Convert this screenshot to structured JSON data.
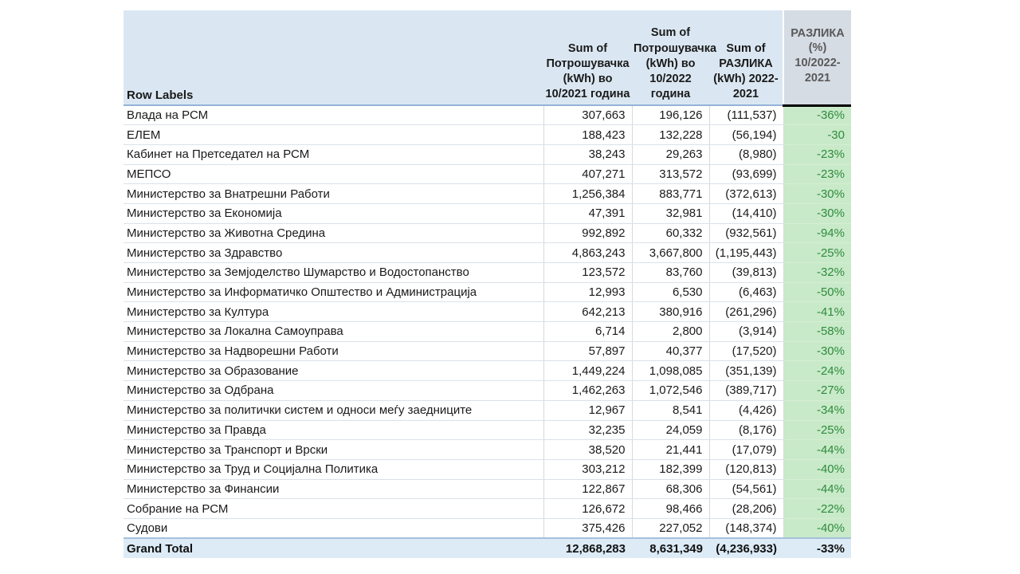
{
  "table": {
    "header": {
      "row_labels": "Row Labels",
      "col_2021": "Sum of Потрошувачка (kWh) во 10/2021 година",
      "col_2022": "Sum of Потрошувачка (kWh) во 10/2022 година",
      "col_diff": "Sum of РАЗЛИКА (kWh) 2022-2021",
      "col_pct": "РАЗЛИКА (%) 10/2022-2021"
    },
    "rows": [
      {
        "label": "Влада на РСМ",
        "y2021": "307,663",
        "y2022": "196,126",
        "diff": "(111,537)",
        "pct": "-36%"
      },
      {
        "label": "ЕЛЕМ",
        "y2021": "188,423",
        "y2022": "132,228",
        "diff": "(56,194)",
        "pct": "-30"
      },
      {
        "label": "Кабинет на Претседател на РСМ",
        "y2021": "38,243",
        "y2022": "29,263",
        "diff": "(8,980)",
        "pct": "-23%"
      },
      {
        "label": "МЕПСО",
        "y2021": "407,271",
        "y2022": "313,572",
        "diff": "(93,699)",
        "pct": "-23%"
      },
      {
        "label": "Министерство за Внатрешни Работи",
        "y2021": "1,256,384",
        "y2022": "883,771",
        "diff": "(372,613)",
        "pct": "-30%"
      },
      {
        "label": "Министерство за Економија",
        "y2021": "47,391",
        "y2022": "32,981",
        "diff": "(14,410)",
        "pct": "-30%"
      },
      {
        "label": "Министерство за Животна Средина",
        "y2021": "992,892",
        "y2022": "60,332",
        "diff": "(932,561)",
        "pct": "-94%"
      },
      {
        "label": "Министерство за Здравство",
        "y2021": "4,863,243",
        "y2022": "3,667,800",
        "diff": "(1,195,443)",
        "pct": "-25%"
      },
      {
        "label": "Министерство за Земјоделство Шумарство и Водостопанство",
        "y2021": "123,572",
        "y2022": "83,760",
        "diff": "(39,813)",
        "pct": "-32%"
      },
      {
        "label": "Министерство за Информатичко Општество и Администрација",
        "y2021": "12,993",
        "y2022": "6,530",
        "diff": "(6,463)",
        "pct": "-50%"
      },
      {
        "label": "Министерство за Култура",
        "y2021": "642,213",
        "y2022": "380,916",
        "diff": "(261,296)",
        "pct": "-41%"
      },
      {
        "label": "Министерство за Локална Самоуправа",
        "y2021": "6,714",
        "y2022": "2,800",
        "diff": "(3,914)",
        "pct": "-58%"
      },
      {
        "label": "Министерство за Надворешни Работи",
        "y2021": "57,897",
        "y2022": "40,377",
        "diff": "(17,520)",
        "pct": "-30%"
      },
      {
        "label": "Министерство за Образование",
        "y2021": "1,449,224",
        "y2022": "1,098,085",
        "diff": "(351,139)",
        "pct": "-24%"
      },
      {
        "label": "Министерство за Одбрана",
        "y2021": "1,462,263",
        "y2022": "1,072,546",
        "diff": "(389,717)",
        "pct": "-27%"
      },
      {
        "label": "Министерство за политички систем и односи меѓу заедниците",
        "y2021": "12,967",
        "y2022": "8,541",
        "diff": "(4,426)",
        "pct": "-34%"
      },
      {
        "label": "Министерство за Правда",
        "y2021": "32,235",
        "y2022": "24,059",
        "diff": "(8,176)",
        "pct": "-25%"
      },
      {
        "label": "Министерство за Транспорт и Врски",
        "y2021": "38,520",
        "y2022": "21,441",
        "diff": "(17,079)",
        "pct": "-44%"
      },
      {
        "label": "Министерство за Труд и Социјална Политика",
        "y2021": "303,212",
        "y2022": "182,399",
        "diff": "(120,813)",
        "pct": "-40%"
      },
      {
        "label": "Министерство за Финансии",
        "y2021": "122,867",
        "y2022": "68,306",
        "diff": "(54,561)",
        "pct": "-44%"
      },
      {
        "label": "Собрание на РСМ",
        "y2021": "126,672",
        "y2022": "98,466",
        "diff": "(28,206)",
        "pct": "-22%"
      },
      {
        "label": "Судови",
        "y2021": "375,426",
        "y2022": "227,052",
        "diff": "(148,374)",
        "pct": "-40%"
      }
    ],
    "grand_total": {
      "label": "Grand Total",
      "y2021": "12,868,283",
      "y2022": "8,631,349",
      "diff": "(4,236,933)",
      "pct": "-33%"
    }
  },
  "colors": {
    "header_bg": "#dae7f2",
    "pct_header_bg": "#d6dce4",
    "pct_header_text": "#595959",
    "pct_cell_bg": "#c9eac9",
    "pct_cell_text": "#2e8b3e",
    "grand_total_bg": "#dcebf6",
    "header_border": "#95b3d7",
    "pct_header_bottom_border": "#000000"
  },
  "chart_data": {
    "type": "table",
    "columns": [
      "Row Labels",
      "Sum of Потрошувачка (kWh) во 10/2021 година",
      "Sum of Потрошувачка (kWh) во 10/2022 година",
      "Sum of РАЗЛИКА (kWh) 2022-2021",
      "РАЗЛИКА (%) 10/2022-2021"
    ],
    "rows": [
      [
        "Влада на РСМ",
        307663,
        196126,
        -111537,
        -36
      ],
      [
        "ЕЛЕМ",
        188423,
        132228,
        -56194,
        -30
      ],
      [
        "Кабинет на Претседател на РСМ",
        38243,
        29263,
        -8980,
        -23
      ],
      [
        "МЕПСО",
        407271,
        313572,
        -93699,
        -23
      ],
      [
        "Министерство за Внатрешни Работи",
        1256384,
        883771,
        -372613,
        -30
      ],
      [
        "Министерство за Економија",
        47391,
        32981,
        -14410,
        -30
      ],
      [
        "Министерство за Животна Средина",
        992892,
        60332,
        -932561,
        -94
      ],
      [
        "Министерство за Здравство",
        4863243,
        3667800,
        -1195443,
        -25
      ],
      [
        "Министерство за Земјоделство Шумарство и Водостопанство",
        123572,
        83760,
        -39813,
        -32
      ],
      [
        "Министерство за Информатичко Општество и Администрација",
        12993,
        6530,
        -6463,
        -50
      ],
      [
        "Министерство за Култура",
        642213,
        380916,
        -261296,
        -41
      ],
      [
        "Министерство за Локална Самоуправа",
        6714,
        2800,
        -3914,
        -58
      ],
      [
        "Министерство за Надворешни Работи",
        57897,
        40377,
        -17520,
        -30
      ],
      [
        "Министерство за Образование",
        1449224,
        1098085,
        -351139,
        -24
      ],
      [
        "Министерство за Одбрана",
        1462263,
        1072546,
        -389717,
        -27
      ],
      [
        "Министерство за политички систем и односи меѓу заедниците",
        12967,
        8541,
        -4426,
        -34
      ],
      [
        "Министерство за Правда",
        32235,
        24059,
        -8176,
        -25
      ],
      [
        "Министерство за Транспорт и Врски",
        38520,
        21441,
        -17079,
        -44
      ],
      [
        "Министерство за Труд и Социјална Политика",
        303212,
        182399,
        -120813,
        -40
      ],
      [
        "Министерство за Финансии",
        122867,
        68306,
        -54561,
        -44
      ],
      [
        "Собрание на РСМ",
        126672,
        98466,
        -28206,
        -22
      ],
      [
        "Судови",
        375426,
        227052,
        -148374,
        -40
      ]
    ],
    "grand_total": [
      "Grand Total",
      12868283,
      8631349,
      -4236933,
      -33
    ]
  }
}
